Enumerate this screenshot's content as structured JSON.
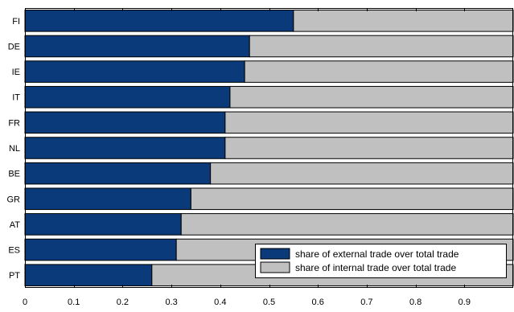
{
  "chart_data": {
    "type": "bar",
    "orientation": "horizontal",
    "stacked": true,
    "categories": [
      "FI",
      "DE",
      "IE",
      "IT",
      "FR",
      "NL",
      "BE",
      "GR",
      "AT",
      "ES",
      "PT"
    ],
    "series": [
      {
        "name": "share of external trade over total trade",
        "color": "#0b3a7a",
        "values": [
          0.55,
          0.46,
          0.45,
          0.42,
          0.41,
          0.41,
          0.38,
          0.34,
          0.32,
          0.31,
          0.26
        ]
      },
      {
        "name": "share of internal trade over total trade",
        "color": "#c0c0c0",
        "values": [
          0.45,
          0.54,
          0.55,
          0.58,
          0.59,
          0.59,
          0.62,
          0.66,
          0.68,
          0.69,
          0.74
        ]
      }
    ],
    "xlim": [
      0,
      1
    ],
    "xticks": [
      0,
      0.1,
      0.2,
      0.3,
      0.4,
      0.5,
      0.6,
      0.7,
      0.8,
      0.9
    ],
    "xtick_labels": [
      "0",
      "0.1",
      "0.2",
      "0.3",
      "0.4",
      "0.5",
      "0.6",
      "0.7",
      "0.8",
      "0.9"
    ],
    "title": "",
    "xlabel": "",
    "ylabel": "",
    "grid": false,
    "legend_position": "bottom-right"
  }
}
